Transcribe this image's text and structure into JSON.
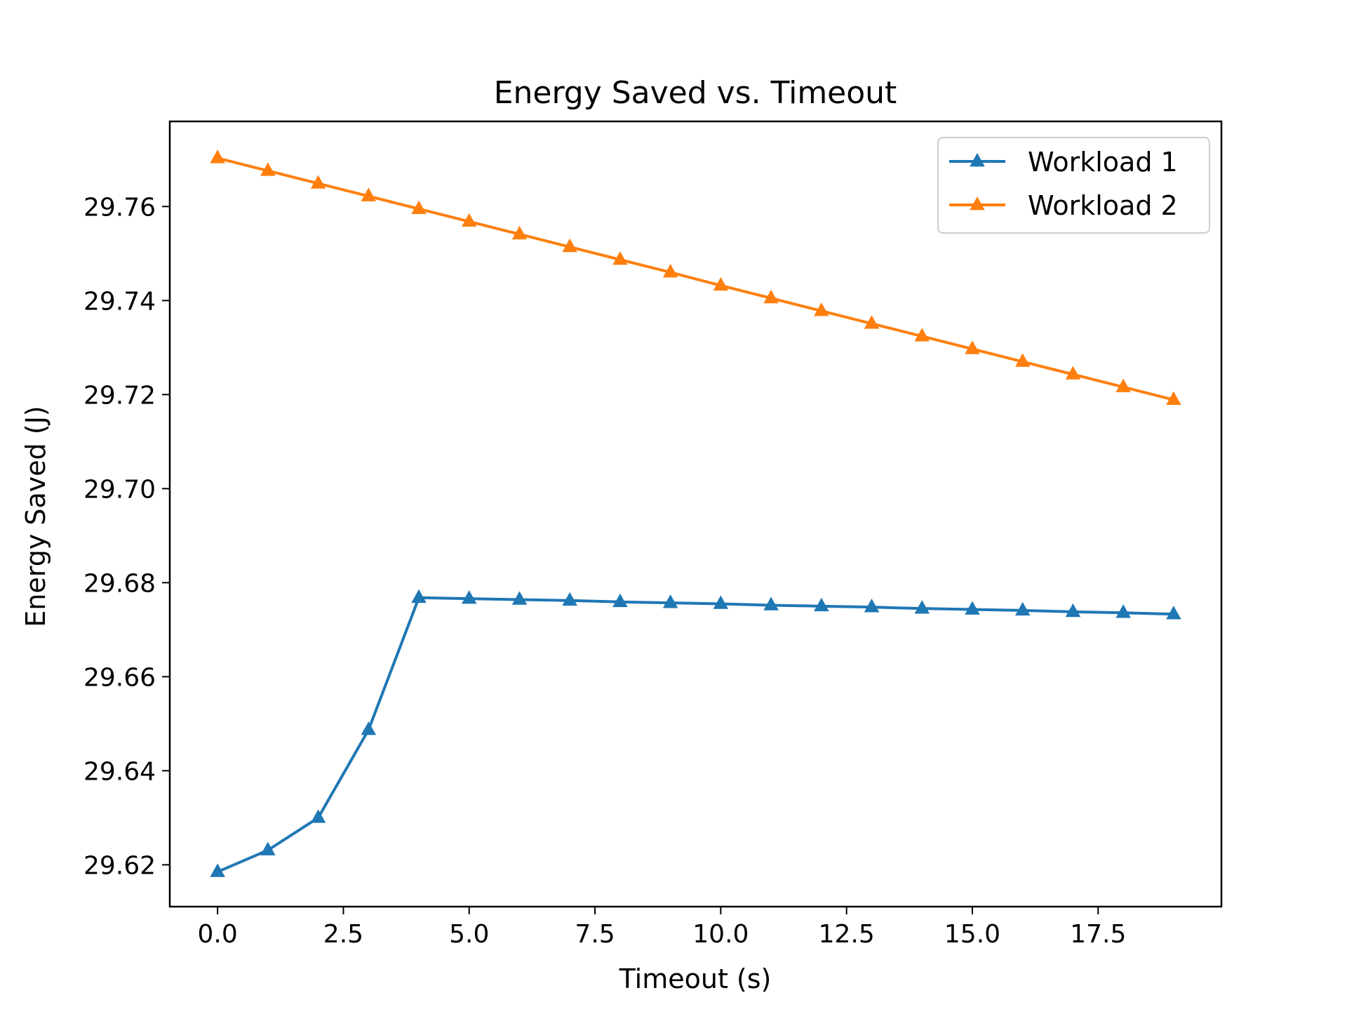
{
  "chart_data": {
    "type": "line",
    "title": "Energy Saved vs. Timeout",
    "xlabel": "Timeout (s)",
    "ylabel": "Energy Saved (J)",
    "xlim": [
      -0.95,
      19.95
    ],
    "ylim": [
      29.6111,
      29.7781
    ],
    "xticks": [
      0.0,
      2.5,
      5.0,
      7.5,
      10.0,
      12.5,
      15.0,
      17.5
    ],
    "xtick_labels": [
      "0.0",
      "2.5",
      "5.0",
      "7.5",
      "10.0",
      "12.5",
      "15.0",
      "17.5"
    ],
    "yticks": [
      29.62,
      29.64,
      29.66,
      29.68,
      29.7,
      29.72,
      29.74,
      29.76
    ],
    "ytick_labels": [
      "29.62",
      "29.64",
      "29.66",
      "29.68",
      "29.70",
      "29.72",
      "29.74",
      "29.76"
    ],
    "grid": false,
    "legend_position": "top-right",
    "marker": "triangle-up",
    "x": [
      0,
      1,
      2,
      3,
      4,
      5,
      6,
      7,
      8,
      9,
      10,
      11,
      12,
      13,
      14,
      15,
      16,
      17,
      18,
      19
    ],
    "series": [
      {
        "name": "Workload 1",
        "color": "#1f77b4",
        "values": [
          29.6185,
          29.6231,
          29.63,
          29.6487,
          29.6768,
          29.6766,
          29.6764,
          29.6762,
          29.6759,
          29.6757,
          29.6755,
          29.6752,
          29.675,
          29.6748,
          29.6745,
          29.6743,
          29.6741,
          29.6738,
          29.6736,
          29.6733
        ]
      },
      {
        "name": "Workload 2",
        "color": "#ff7f0e",
        "values": [
          29.7703,
          29.7676,
          29.7649,
          29.7622,
          29.7595,
          29.7568,
          29.7541,
          29.7514,
          29.7487,
          29.746,
          29.7432,
          29.7405,
          29.7378,
          29.7351,
          29.7324,
          29.7297,
          29.727,
          29.7243,
          29.7216,
          29.7189
        ]
      }
    ]
  }
}
